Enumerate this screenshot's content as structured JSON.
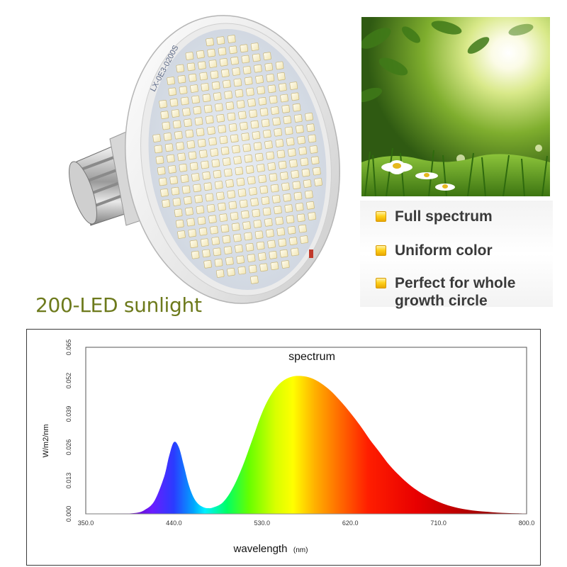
{
  "product": {
    "caption": "200-LED sunlight",
    "bulb_board_marking": "LX-0E3-0200S"
  },
  "features": [
    {
      "text": "Full spectrum"
    },
    {
      "text": "Uniform color"
    },
    {
      "text": "Perfect for whole\ngrowth circle"
    }
  ],
  "chart_data": {
    "type": "area",
    "title": "spectrum",
    "xlabel": "wavelength",
    "xlabel_unit": "(nm)",
    "ylabel": "W/m2/nm",
    "xlim": [
      350.0,
      800.0
    ],
    "ylim": [
      0.0,
      0.065
    ],
    "x_ticks": [
      "350.0",
      "440.0",
      "530.0",
      "620.0",
      "710.0",
      "800.0"
    ],
    "y_ticks": [
      "0.000",
      "0.013",
      "0.026",
      "0.039",
      "0.052",
      "0.065"
    ],
    "grid": false,
    "fill": "wavelength-colored",
    "series": [
      {
        "x": [
          350,
          380,
          400,
          410,
          420,
          430,
          435,
          440,
          445,
          450,
          455,
          460,
          465,
          470,
          475,
          480,
          490,
          500,
          510,
          520,
          530,
          540,
          550,
          560,
          570,
          580,
          590,
          600,
          610,
          620,
          630,
          640,
          650,
          660,
          670,
          680,
          690,
          700,
          710,
          720,
          730,
          740,
          750,
          760,
          770,
          780,
          790,
          800
        ],
        "y": [
          0.0,
          0.0,
          0.0003,
          0.0015,
          0.005,
          0.0145,
          0.0225,
          0.028,
          0.026,
          0.019,
          0.0115,
          0.0065,
          0.0038,
          0.0026,
          0.0022,
          0.0025,
          0.0045,
          0.01,
          0.0185,
          0.029,
          0.0395,
          0.047,
          0.0515,
          0.0535,
          0.0538,
          0.053,
          0.051,
          0.048,
          0.044,
          0.0395,
          0.0345,
          0.029,
          0.024,
          0.019,
          0.015,
          0.0115,
          0.0087,
          0.0065,
          0.0047,
          0.0033,
          0.0023,
          0.0016,
          0.0011,
          0.0008,
          0.0005,
          0.0003,
          0.0002,
          0.0001
        ]
      }
    ]
  },
  "colors": {
    "caption": "#6d7a1c",
    "feature_text": "#3a3a3a",
    "bullet": "#ffd21c"
  }
}
